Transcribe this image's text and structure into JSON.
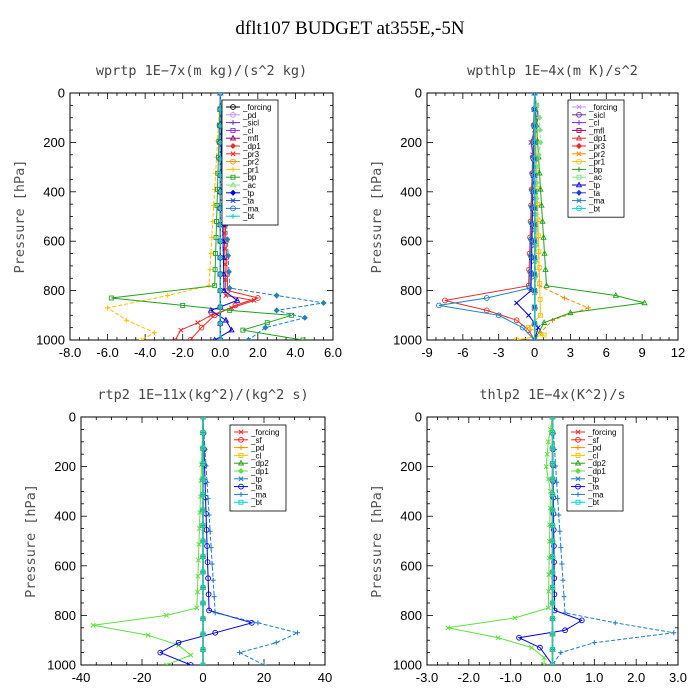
{
  "title": "dflt107  BUDGET at355E,-5N",
  "chart_data": [
    {
      "type": "line",
      "title": "wprtp   1E−7x(m kg)/(s^2 kg)",
      "ylabel": "Pressure [hPa]",
      "xlim": [
        -8,
        6
      ],
      "ylim": [
        1000,
        0
      ],
      "xticks": [
        -8,
        -6,
        -4,
        -2,
        0,
        2,
        4,
        6
      ],
      "xtick_labels": [
        "-8.0",
        "-6.0",
        "-4.0",
        "-2.0",
        "0.0",
        "2.0",
        "4.0",
        "6.0"
      ],
      "yticks": [
        0,
        200,
        400,
        600,
        800,
        1000
      ],
      "ytick_labels": [
        "0",
        "200",
        "400",
        "600",
        "800",
        "1000"
      ],
      "legend": [
        "_forcing",
        "_pd",
        "_sicl",
        "_cl",
        "_mfl",
        "_dp1",
        "_pr3",
        "_pr2",
        "_pr1",
        "_bp",
        "_ac",
        "_tp",
        "_ta",
        "_ma",
        "_bt"
      ],
      "series": [
        {
          "name": "_forcing",
          "color": "#000000",
          "marker": "circle",
          "p": [
            0,
            1000
          ],
          "x": [
            0,
            0
          ]
        },
        {
          "name": "_pd",
          "color": "#c890e0",
          "p": [
            0,
            1000
          ],
          "x": [
            0,
            0
          ]
        },
        {
          "name": "_sicl",
          "color": "#7030a0",
          "p": [
            0,
            1000
          ],
          "x": [
            0,
            0
          ]
        },
        {
          "name": "_cl",
          "color": "#8a2be2",
          "p": [
            0,
            1000
          ],
          "x": [
            0,
            0
          ]
        },
        {
          "name": "_mfl",
          "color": "#a00070",
          "p": [
            0,
            1000
          ],
          "x": [
            0,
            0
          ]
        },
        {
          "name": "_dp1",
          "color": "#e03030",
          "p": [
            0,
            820,
            840,
            870,
            900,
            930,
            960,
            1000
          ],
          "x": [
            0,
            0.3,
            1.8,
            0.6,
            -0.5,
            -1.2,
            -2.1,
            -2.4
          ]
        },
        {
          "name": "_pr3",
          "color": "#ff2020",
          "p": [
            0,
            800,
            830,
            860,
            900,
            950,
            1000
          ],
          "x": [
            0,
            0.4,
            2.0,
            0.8,
            -0.3,
            -1.0,
            -1.6
          ]
        },
        {
          "name": "_pr2",
          "color": "#ff8c00",
          "p": [
            0,
            1000
          ],
          "x": [
            0,
            0
          ]
        },
        {
          "name": "_pr1",
          "color": "#ffc000",
          "p": [
            0,
            780,
            820,
            870,
            920,
            970,
            1000
          ],
          "x": [
            0,
            -0.6,
            -2.8,
            -6.0,
            -5.0,
            -3.5,
            -4.2
          ]
        },
        {
          "name": "_bp",
          "color": "#20a020",
          "p": [
            0,
            780,
            830,
            860,
            880,
            900,
            930,
            960,
            1000
          ],
          "x": [
            0,
            -0.3,
            -5.8,
            -2.0,
            0.5,
            3.8,
            2.5,
            1.2,
            4.4
          ]
        },
        {
          "name": "_ac",
          "color": "#80e080",
          "p": [
            0,
            1000
          ],
          "x": [
            0,
            0
          ]
        },
        {
          "name": "_tp",
          "color": "#0000e0",
          "p": [
            0,
            800,
            840,
            880,
            920,
            960,
            1000
          ],
          "x": [
            0,
            0.2,
            0.9,
            -0.5,
            0.3,
            0.6,
            -0.3
          ]
        },
        {
          "name": "_ta",
          "color": "#2040d0",
          "p": [
            0,
            1000
          ],
          "x": [
            0,
            0
          ]
        },
        {
          "name": "_ma",
          "color": "#1f7fbf",
          "p": [
            0,
            790,
            820,
            850,
            880,
            910,
            950,
            1000
          ],
          "x": [
            0,
            0.5,
            3.0,
            5.5,
            3.0,
            4.5,
            2.4,
            1.5
          ]
        },
        {
          "name": "_bt",
          "color": "#00d0d0",
          "p": [
            0,
            1000
          ],
          "x": [
            0,
            0
          ]
        }
      ]
    },
    {
      "type": "line",
      "title": "wpthlp   1E−4x(m K)/s^2",
      "ylabel": "Pressure [hPa]",
      "xlim": [
        -9,
        12
      ],
      "ylim": [
        1000,
        0
      ],
      "xticks": [
        -9,
        -6,
        -3,
        0,
        3,
        6,
        9,
        12
      ],
      "xtick_labels": [
        "-9",
        "-6",
        "-3",
        "0",
        "3",
        "6",
        "9",
        "12"
      ],
      "yticks": [
        0,
        200,
        400,
        600,
        800,
        1000
      ],
      "ytick_labels": [
        "0",
        "200",
        "400",
        "600",
        "800",
        "1000"
      ],
      "legend": [
        "_forcing",
        "_sicl",
        "_cl",
        "_mfl",
        "_dp1",
        "_pr3",
        "_pr2",
        "_pr1",
        "_bp",
        "_ac",
        "_tp",
        "_ta",
        "_ma",
        "_bt"
      ],
      "series": [
        {
          "name": "_forcing",
          "color": "#c890e0",
          "p": [
            0,
            1000
          ],
          "x": [
            0,
            0
          ]
        },
        {
          "name": "_sicl",
          "color": "#7030a0",
          "p": [
            0,
            1000
          ],
          "x": [
            0,
            0
          ]
        },
        {
          "name": "_cl",
          "color": "#8a2be2",
          "p": [
            0,
            100,
            200,
            300,
            1000
          ],
          "x": [
            0,
            0.3,
            -0.3,
            0,
            0
          ]
        },
        {
          "name": "_mfl",
          "color": "#a00070",
          "p": [
            0,
            1000
          ],
          "x": [
            0,
            0
          ]
        },
        {
          "name": "_dp1",
          "color": "#e03030",
          "p": [
            0,
            780,
            840,
            880,
            920,
            960,
            1000
          ],
          "x": [
            0,
            -0.5,
            -7.5,
            -4.0,
            -1.5,
            -0.5,
            0
          ]
        },
        {
          "name": "_pr3",
          "color": "#ff2020",
          "p": [
            0,
            1000
          ],
          "x": [
            0,
            0
          ]
        },
        {
          "name": "_pr2",
          "color": "#ff8c00",
          "p": [
            0,
            780,
            830,
            870,
            920,
            970,
            1000
          ],
          "x": [
            0,
            0.4,
            2.5,
            4.5,
            1.5,
            0.5,
            0
          ]
        },
        {
          "name": "_pr1",
          "color": "#ffc000",
          "p": [
            0,
            900,
            950,
            980,
            1000
          ],
          "x": [
            0,
            0.5,
            -0.5,
            0.8,
            -1.5
          ]
        },
        {
          "name": "_bp",
          "color": "#20a020",
          "p": [
            0,
            780,
            820,
            850,
            890,
            930,
            1000
          ],
          "x": [
            0,
            1.0,
            6.8,
            9.2,
            3.0,
            0.8,
            0
          ]
        },
        {
          "name": "_ac",
          "color": "#80e080",
          "p": [
            0,
            100,
            200,
            300,
            1000
          ],
          "x": [
            0,
            0.4,
            0.5,
            0.2,
            0
          ]
        },
        {
          "name": "_tp",
          "color": "#0000e0",
          "p": [
            0,
            800,
            850,
            900,
            950,
            1000
          ],
          "x": [
            0,
            -0.3,
            -1.5,
            -0.5,
            0.3,
            0
          ]
        },
        {
          "name": "_ta",
          "color": "#2040d0",
          "p": [
            0,
            1000
          ],
          "x": [
            0,
            0
          ]
        },
        {
          "name": "_ma",
          "color": "#1f7fbf",
          "p": [
            0,
            790,
            830,
            860,
            900,
            950,
            1000
          ],
          "x": [
            0,
            -0.4,
            -4.0,
            -8.0,
            -3.0,
            -1.0,
            0
          ]
        },
        {
          "name": "_bt",
          "color": "#00d0d0",
          "p": [
            0,
            1000
          ],
          "x": [
            0,
            0
          ]
        }
      ]
    },
    {
      "type": "line",
      "title": "rtp2   1E−11x(kg^2)/(kg^2 s)",
      "ylabel": "Pressure [hPa]",
      "xlim": [
        -40,
        40
      ],
      "ylim": [
        1000,
        0
      ],
      "xticks": [
        -40,
        -20,
        0,
        20,
        40
      ],
      "xtick_labels": [
        "-40",
        "-20",
        "0",
        "20",
        "40"
      ],
      "yticks": [
        0,
        200,
        400,
        600,
        800,
        1000
      ],
      "ytick_labels": [
        "0",
        "200",
        "400",
        "600",
        "800",
        "1000"
      ],
      "legend": [
        "_forcing",
        "_sf",
        "_pd",
        "_cl",
        "_dp2",
        "_dp1",
        "_tp",
        "_ta",
        "_ma",
        "_bt"
      ],
      "series": [
        {
          "name": "_forcing",
          "color": "#e03030",
          "p": [
            0,
            1000
          ],
          "x": [
            0,
            0
          ]
        },
        {
          "name": "_sf",
          "color": "#ff2020",
          "p": [
            0,
            1000
          ],
          "x": [
            0,
            0
          ]
        },
        {
          "name": "_pd",
          "color": "#ff8c00",
          "p": [
            0,
            1000
          ],
          "x": [
            0,
            0
          ]
        },
        {
          "name": "_cl",
          "color": "#ffc000",
          "p": [
            0,
            1000
          ],
          "x": [
            0,
            0
          ]
        },
        {
          "name": "_dp2",
          "color": "#20a020",
          "p": [
            0,
            1000
          ],
          "x": [
            0,
            0
          ]
        },
        {
          "name": "_dp1",
          "color": "#60e040",
          "p": [
            0,
            770,
            800,
            840,
            880,
            920,
            960,
            1000
          ],
          "x": [
            0,
            -2,
            -12,
            -36,
            -18,
            -8,
            -4,
            -12
          ]
        },
        {
          "name": "_tp",
          "color": "#1f7fbf",
          "p": [
            0,
            1000
          ],
          "x": [
            0,
            0
          ]
        },
        {
          "name": "_ta",
          "color": "#0000e0",
          "p": [
            0,
            780,
            830,
            870,
            910,
            950,
            1000
          ],
          "x": [
            0,
            2,
            16,
            4,
            -8,
            -14,
            -4
          ]
        },
        {
          "name": "_ma",
          "color": "#1f7fbf",
          "p": [
            0,
            790,
            830,
            870,
            910,
            950,
            1000
          ],
          "x": [
            0,
            4,
            18,
            31,
            24,
            12,
            20
          ]
        },
        {
          "name": "_bt",
          "color": "#00d0d0",
          "p": [
            0,
            1000
          ],
          "x": [
            0,
            0
          ]
        }
      ]
    },
    {
      "type": "line",
      "title": "thlp2   1E−4x(K^2)/s",
      "ylabel": "Pressure [hPa]",
      "xlim": [
        -3,
        3
      ],
      "ylim": [
        1000,
        0
      ],
      "xticks": [
        -3,
        -2,
        -1,
        0,
        1,
        2,
        3
      ],
      "xtick_labels": [
        "-3.0",
        "-2.0",
        "-1.0",
        "0.0",
        "1.0",
        "2.0",
        "3.0"
      ],
      "yticks": [
        0,
        200,
        400,
        600,
        800,
        1000
      ],
      "ytick_labels": [
        "0",
        "200",
        "400",
        "600",
        "800",
        "1000"
      ],
      "legend": [
        "_forcing",
        "_sf",
        "_pd",
        "_cl",
        "_dp2",
        "_dp1",
        "_tp",
        "_ta",
        "_ma",
        "_bt"
      ],
      "series": [
        {
          "name": "_forcing",
          "color": "#e03030",
          "p": [
            0,
            1000
          ],
          "x": [
            0,
            0
          ]
        },
        {
          "name": "_sf",
          "color": "#ff2020",
          "p": [
            0,
            1000
          ],
          "x": [
            0,
            0
          ]
        },
        {
          "name": "_pd",
          "color": "#ff8c00",
          "p": [
            0,
            1000
          ],
          "x": [
            0,
            0
          ]
        },
        {
          "name": "_cl",
          "color": "#ffc000",
          "p": [
            0,
            1000
          ],
          "x": [
            0,
            0
          ]
        },
        {
          "name": "_dp2",
          "color": "#20a020",
          "p": [
            0,
            1000
          ],
          "x": [
            0,
            0
          ]
        },
        {
          "name": "_dp1",
          "color": "#60e040",
          "p": [
            0,
            100,
            200,
            300,
            770,
            810,
            850,
            890,
            930,
            970,
            1000
          ],
          "x": [
            0,
            -0.1,
            -0.15,
            -0.05,
            -0.1,
            -0.9,
            -2.5,
            -1.3,
            -0.5,
            -0.2,
            -0.2
          ]
        },
        {
          "name": "_tp",
          "color": "#1f7fbf",
          "p": [
            0,
            1000
          ],
          "x": [
            0,
            0
          ]
        },
        {
          "name": "_ta",
          "color": "#0000e0",
          "p": [
            0,
            780,
            820,
            860,
            890,
            930,
            1000
          ],
          "x": [
            0,
            0.05,
            0.7,
            0.3,
            -0.8,
            -0.3,
            0
          ]
        },
        {
          "name": "_ma",
          "color": "#1f7fbf",
          "p": [
            0,
            790,
            830,
            870,
            910,
            950,
            1000
          ],
          "x": [
            0,
            0.3,
            1.5,
            2.9,
            1.0,
            0.2,
            0
          ]
        },
        {
          "name": "_bt",
          "color": "#00d0d0",
          "p": [
            0,
            1000
          ],
          "x": [
            0,
            0
          ]
        }
      ]
    }
  ]
}
